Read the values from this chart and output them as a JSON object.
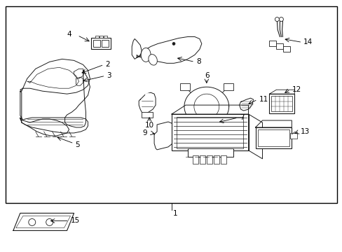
{
  "bg_color": "#ffffff",
  "border_color": "#000000",
  "line_color": "#1a1a1a",
  "fig_width": 4.89,
  "fig_height": 3.6,
  "dpi": 100
}
